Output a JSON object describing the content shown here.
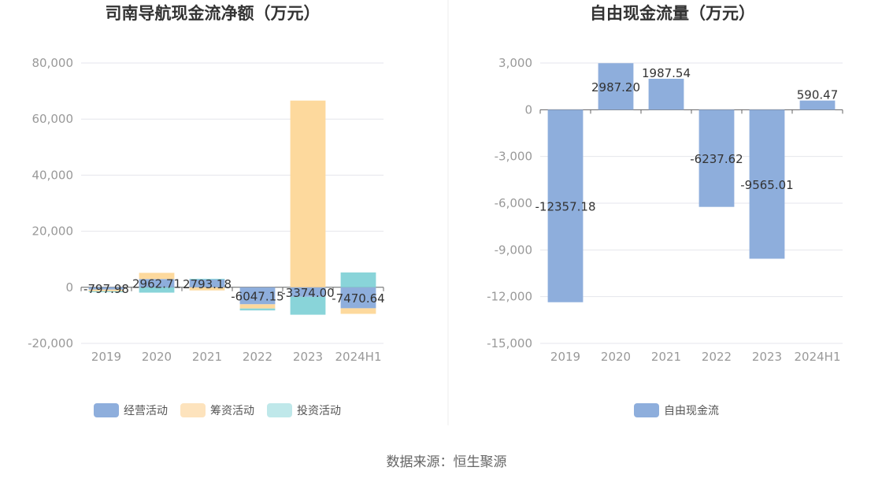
{
  "source_text": "数据来源：恒生聚源",
  "colors": {
    "operating": "#8eaedc",
    "financing": "#fdd99d",
    "investing": "#89d4d9",
    "free_cf": "#8eaedc",
    "legend_financing": "#fde3bd",
    "legend_investing": "#bfe8ea",
    "grid": "#e4e6ec",
    "axis": "#666666"
  },
  "chart_data": [
    {
      "type": "bar",
      "stacked": true,
      "title": "司南导航现金流净额（万元）",
      "categories": [
        "2019",
        "2020",
        "2021",
        "2022",
        "2023",
        "2024H1"
      ],
      "series": [
        {
          "name": "经营活动",
          "key": "operating",
          "values": [
            -797.98,
            2962.71,
            2793.18,
            -6047.15,
            -3374.0,
            -7470.64
          ]
        },
        {
          "name": "筹资活动",
          "key": "financing",
          "values": [
            -600,
            2200,
            -1100,
            -1500,
            66600,
            -2000
          ]
        },
        {
          "name": "投资活动",
          "key": "investing",
          "values": [
            -350,
            -1900,
            250,
            -700,
            -6400,
            5300
          ]
        }
      ],
      "data_labels": [
        "-797.98",
        "2962.71",
        "2793.18",
        "-6047.15",
        "-3374.00",
        "-7470.64"
      ],
      "y_ticks": [
        -20000,
        0,
        20000,
        40000,
        60000,
        80000
      ],
      "y_tick_labels": [
        "-20,000",
        "0",
        "20,000",
        "40,000",
        "60,000",
        "80,000"
      ],
      "ylim": [
        -20000,
        80000
      ],
      "legend_position": "bottom",
      "legend": [
        "经营活动",
        "筹资活动",
        "投资活动"
      ]
    },
    {
      "type": "bar",
      "title": "自由现金流量（万元）",
      "categories": [
        "2019",
        "2020",
        "2021",
        "2022",
        "2023",
        "2024H1"
      ],
      "series": [
        {
          "name": "自由现金流",
          "key": "free_cf",
          "values": [
            -12357.18,
            2987.2,
            1987.54,
            -6237.62,
            -9565.01,
            590.47
          ]
        }
      ],
      "data_labels": [
        "-12357.18",
        "2987.20",
        "1987.54",
        "-6237.62",
        "-9565.01",
        "590.47"
      ],
      "y_ticks": [
        -15000,
        -12000,
        -9000,
        -6000,
        -3000,
        0,
        3000
      ],
      "y_tick_labels": [
        "-15,000",
        "-12,000",
        "-9,000",
        "-6,000",
        "-3,000",
        "0",
        "3,000"
      ],
      "ylim": [
        -15000,
        3000
      ],
      "legend_position": "bottom",
      "legend": [
        "自由现金流"
      ]
    }
  ]
}
